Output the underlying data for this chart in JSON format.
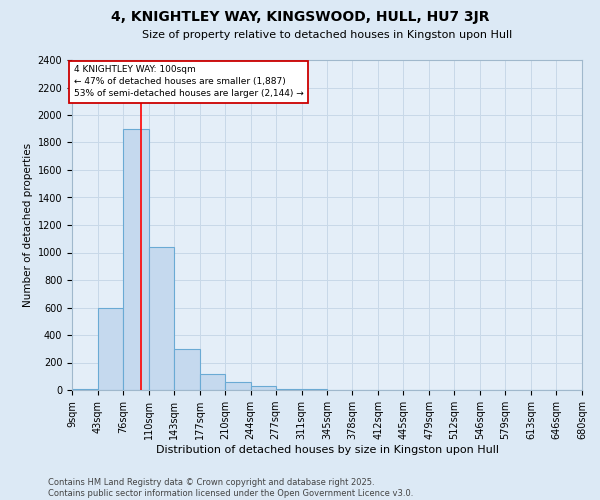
{
  "title": "4, KNIGHTLEY WAY, KINGSWOOD, HULL, HU7 3JR",
  "subtitle": "Size of property relative to detached houses in Kingston upon Hull",
  "xlabel": "Distribution of detached houses by size in Kingston upon Hull",
  "ylabel": "Number of detached properties",
  "footer": "Contains HM Land Registry data © Crown copyright and database right 2025.\nContains public sector information licensed under the Open Government Licence v3.0.",
  "bins": [
    9,
    43,
    76,
    110,
    143,
    177,
    210,
    244,
    277,
    311,
    345,
    378,
    412,
    445,
    479,
    512,
    546,
    579,
    613,
    646,
    680
  ],
  "values": [
    10,
    600,
    1900,
    1040,
    295,
    115,
    55,
    30,
    8,
    4,
    2,
    1,
    1,
    0,
    0,
    0,
    0,
    0,
    0,
    0
  ],
  "bar_color": "#c5d9ee",
  "bar_edge_color": "#6aaad4",
  "red_line_x": 100,
  "ylim": [
    0,
    2400
  ],
  "yticks": [
    0,
    200,
    400,
    600,
    800,
    1000,
    1200,
    1400,
    1600,
    1800,
    2000,
    2200,
    2400
  ],
  "annotation_text": "4 KNIGHTLEY WAY: 100sqm\n← 47% of detached houses are smaller (1,887)\n53% of semi-detached houses are larger (2,144) →",
  "annotation_box_color": "#ffffff",
  "annotation_box_edge": "#cc0000",
  "grid_color": "#c8d8e8",
  "background_color": "#dce9f5",
  "plot_bg_color": "#e4eef8",
  "title_fontsize": 10,
  "subtitle_fontsize": 8,
  "ylabel_fontsize": 7.5,
  "xlabel_fontsize": 8,
  "tick_fontsize": 7,
  "footer_fontsize": 6,
  "ann_fontsize": 6.5
}
